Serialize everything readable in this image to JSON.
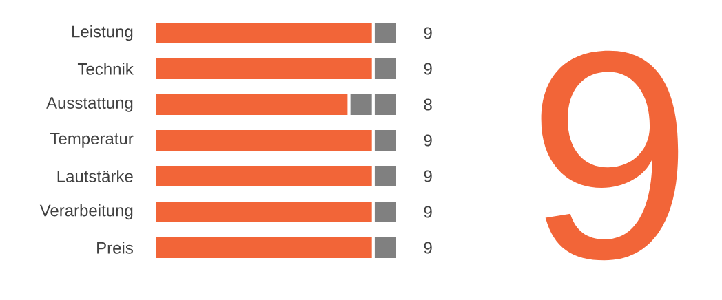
{
  "chart_data": {
    "type": "bar",
    "orientation": "horizontal",
    "stacked": true,
    "categories": [
      "Leistung",
      "Technik",
      "Ausstattung",
      "Temperatur",
      "Lautstärke",
      "Verarbeitung",
      "Preis"
    ],
    "xlim": [
      0,
      10
    ],
    "series": [
      {
        "color": "#f26538",
        "values": [
          9,
          9,
          8,
          9,
          9,
          9,
          9
        ],
        "value_labels": [
          "9",
          "9",
          "8",
          "9",
          "9",
          "9",
          "9"
        ]
      },
      {
        "color": "#808080",
        "values": [
          1,
          1,
          1,
          1,
          1,
          1,
          1
        ]
      },
      {
        "color": "#808080",
        "values": [
          null,
          null,
          1,
          null,
          null,
          null,
          null
        ]
      }
    ],
    "annotations": [
      "9"
    ]
  }
}
